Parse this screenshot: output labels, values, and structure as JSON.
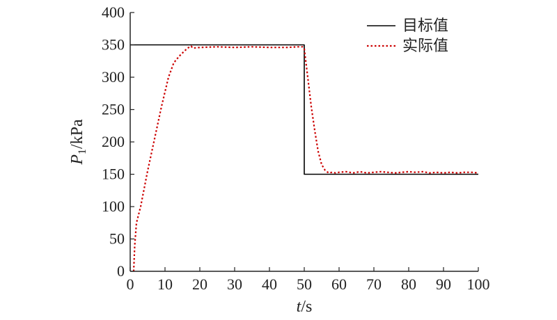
{
  "chart_data": {
    "type": "line",
    "xlabel": {
      "var": "t",
      "unit": "/s"
    },
    "ylabel": {
      "var": "P",
      "sub": "1",
      "unit": "/kPa"
    },
    "xlim": [
      0,
      100
    ],
    "ylim": [
      0,
      400
    ],
    "xticks": [
      0,
      10,
      20,
      30,
      40,
      50,
      60,
      70,
      80,
      90,
      100
    ],
    "yticks": [
      0,
      50,
      100,
      150,
      200,
      250,
      300,
      350,
      400
    ],
    "grid": false,
    "legend": {
      "placement": "top-right"
    },
    "series": [
      {
        "name": "目标值",
        "color": "#000000",
        "style": "solid",
        "points": [
          [
            0,
            350
          ],
          [
            50,
            350
          ],
          [
            50,
            150
          ],
          [
            100,
            150
          ]
        ]
      },
      {
        "name": "实际值",
        "color": "#cc0000",
        "style": "dotted",
        "points": [
          [
            1,
            0
          ],
          [
            1.3,
            40
          ],
          [
            1.8,
            75
          ],
          [
            3,
            100
          ],
          [
            5,
            155
          ],
          [
            7,
            205
          ],
          [
            9,
            255
          ],
          [
            11,
            300
          ],
          [
            12.5,
            322
          ],
          [
            14,
            332
          ],
          [
            15.5,
            340
          ],
          [
            16.5,
            345
          ],
          [
            17.5,
            348
          ],
          [
            18,
            345
          ],
          [
            20,
            346
          ],
          [
            25,
            347
          ],
          [
            30,
            346
          ],
          [
            35,
            347
          ],
          [
            40,
            346
          ],
          [
            45,
            346
          ],
          [
            48,
            347
          ],
          [
            49.5,
            347
          ],
          [
            50,
            344
          ],
          [
            51,
            300
          ],
          [
            52,
            255
          ],
          [
            53,
            218
          ],
          [
            54,
            185
          ],
          [
            55,
            165
          ],
          [
            56,
            156
          ],
          [
            57,
            152
          ],
          [
            58,
            153
          ],
          [
            59,
            152
          ],
          [
            60,
            153
          ],
          [
            62,
            154
          ],
          [
            64,
            152
          ],
          [
            66,
            154
          ],
          [
            68,
            152
          ],
          [
            70,
            153
          ],
          [
            72,
            154
          ],
          [
            74,
            153
          ],
          [
            76,
            152
          ],
          [
            78,
            153
          ],
          [
            80,
            154
          ],
          [
            82,
            153
          ],
          [
            84,
            154
          ],
          [
            86,
            152
          ],
          [
            88,
            153
          ],
          [
            90,
            152
          ],
          [
            92,
            153
          ],
          [
            94,
            152
          ],
          [
            96,
            153
          ],
          [
            98,
            153
          ],
          [
            100,
            152
          ]
        ]
      }
    ]
  }
}
